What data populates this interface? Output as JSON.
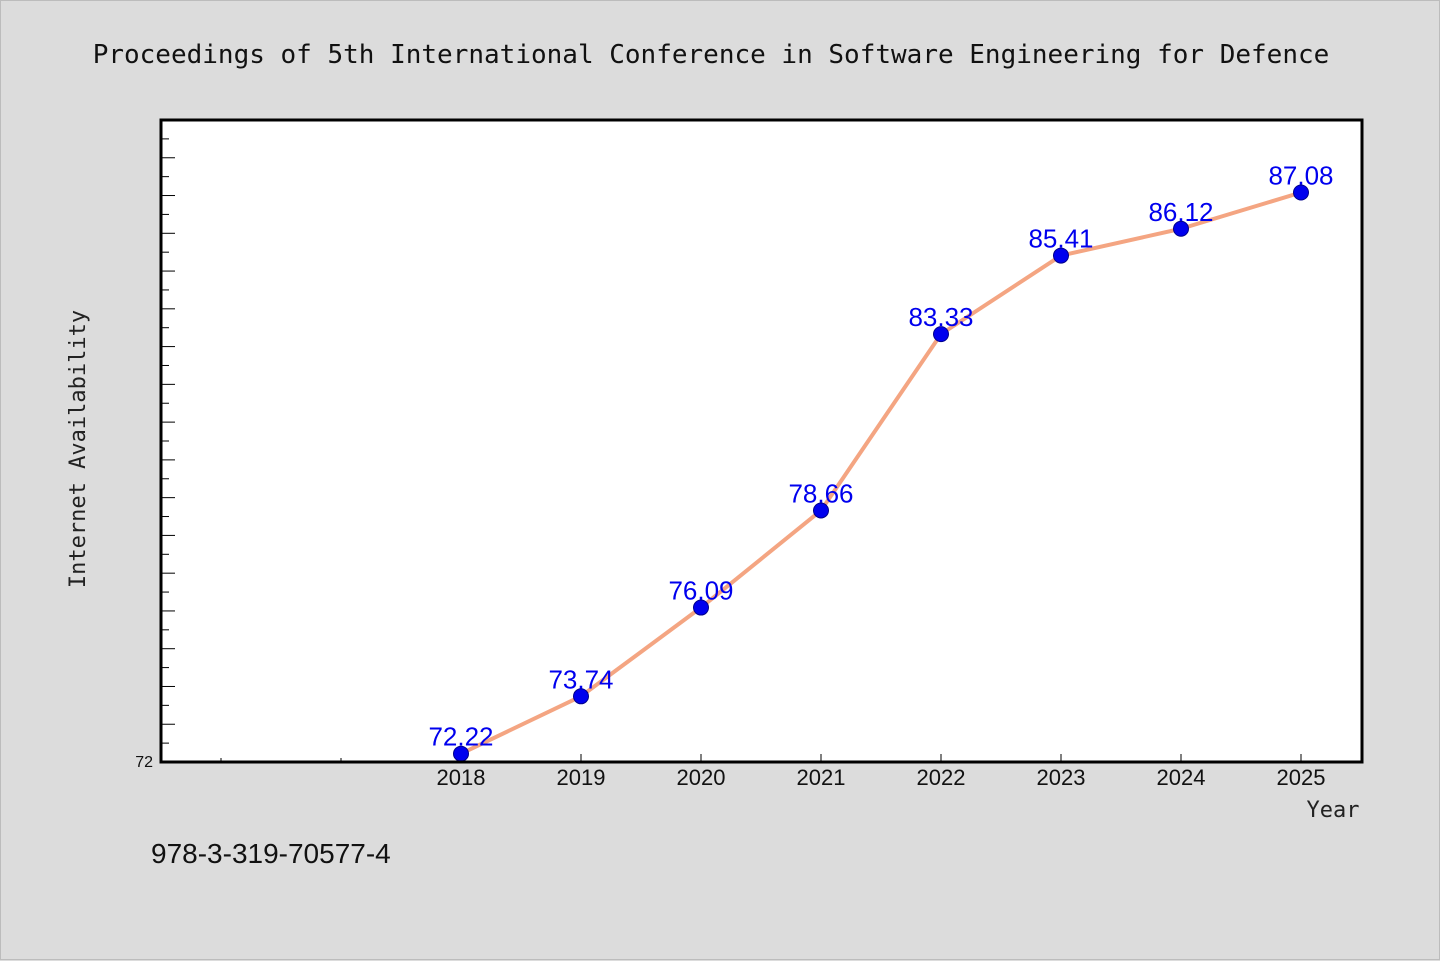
{
  "header": {
    "title": "Proceedings of 5th International Conference in Software Engineering for Defence"
  },
  "footer": {
    "isbn": "978-3-319-70577-4"
  },
  "chart_data": {
    "type": "line",
    "title": "Proceedings of 5th International Conference in Software Engineering for Defence",
    "xlabel": "Year",
    "ylabel": "Internet Availability",
    "categories": [
      "2018",
      "2019",
      "2020",
      "2021",
      "2022",
      "2023",
      "2024",
      "2025"
    ],
    "series": [
      {
        "values": [
          72.22,
          73.74,
          76.09,
          78.66,
          83.33,
          85.41,
          86.12,
          87.08
        ]
      }
    ],
    "data_labels": [
      "72.22",
      "73.74",
      "76.09",
      "78.66",
      "83.33",
      "85.41",
      "86.12",
      "87.08"
    ],
    "y_tick_labels": [
      "72"
    ],
    "ylim": [
      72,
      89
    ],
    "grid": false,
    "legend": "none",
    "colors": {
      "background": "#dcdcdc",
      "plot_background": "#ffffff",
      "line": "#f4a582",
      "marker": "#0000ee",
      "data_label": "#0000ee",
      "axis": "#000000"
    }
  }
}
